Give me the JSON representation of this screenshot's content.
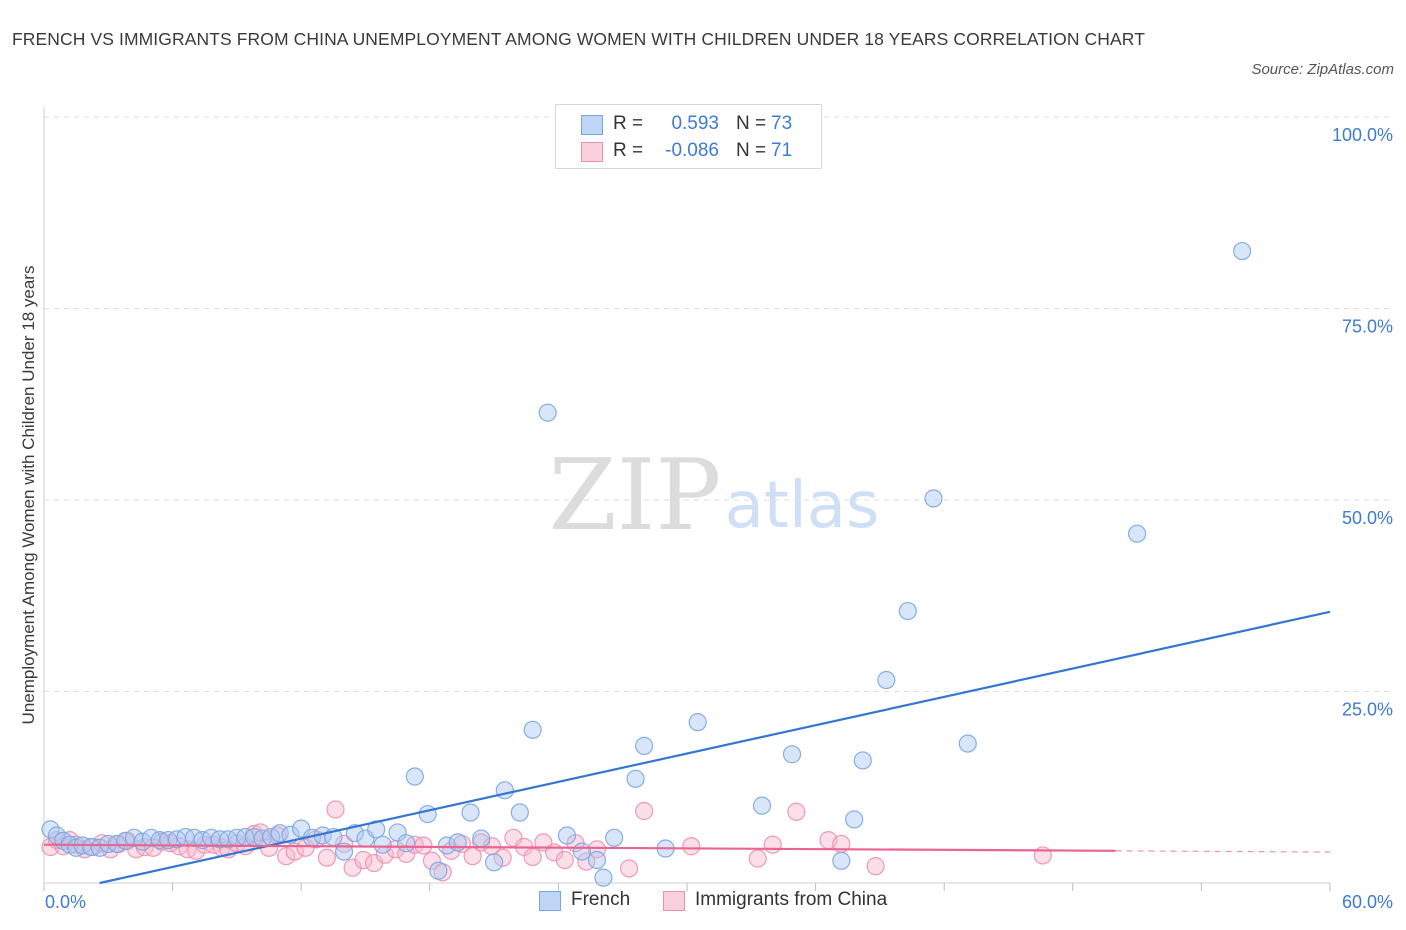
{
  "title": "FRENCH VS IMMIGRANTS FROM CHINA UNEMPLOYMENT AMONG WOMEN WITH CHILDREN UNDER 18 YEARS CORRELATION CHART",
  "source": "Source: ZipAtlas.com",
  "watermark": {
    "zip": "ZIP",
    "atlas": "atlas"
  },
  "legend": {
    "r_label": "R =",
    "n_label": "N =",
    "rows": [
      {
        "r": "0.593",
        "n": "73"
      },
      {
        "r": "-0.086",
        "n": "71"
      }
    ]
  },
  "bottom_legend": [
    "French",
    "Immigrants from China"
  ],
  "colors": {
    "french_fill": "#aac8f2",
    "french_stroke": "#7aa6e0",
    "french_line": "#3576d3",
    "china_fill": "#f7b9cc",
    "china_stroke": "#ee8fb0",
    "china_line": "#e9648f",
    "tick_text": "#3e7bd4"
  },
  "chart_data": {
    "type": "scatter",
    "title": "FRENCH VS IMMIGRANTS FROM CHINA UNEMPLOYMENT AMONG WOMEN WITH CHILDREN UNDER 18 YEARS CORRELATION CHART",
    "xlabel": "",
    "ylabel": "Unemployment Among Women with Children Under 18 years",
    "xlim": [
      0,
      60
    ],
    "ylim": [
      0,
      100
    ],
    "x_tick_labels": [
      "0.0%",
      "60.0%"
    ],
    "y_tick_labels": [
      "100.0%",
      "75.0%",
      "50.0%",
      "25.0%"
    ],
    "y_ticks": [
      100,
      75,
      50,
      25
    ],
    "grid": true,
    "legend_position": "top-center",
    "series": [
      {
        "name": "French",
        "R": 0.593,
        "N": 73,
        "trend": {
          "x0": 2.6,
          "y0": 0.0,
          "x1": 60,
          "y1": 35.4,
          "style": "solid"
        },
        "points": [
          [
            0.3,
            7.0
          ],
          [
            0.6,
            6.2
          ],
          [
            0.9,
            5.5
          ],
          [
            1.2,
            5.0
          ],
          [
            1.5,
            4.6
          ],
          [
            1.8,
            4.9
          ],
          [
            2.2,
            4.7
          ],
          [
            2.6,
            4.6
          ],
          [
            3.0,
            5.1
          ],
          [
            3.4,
            5.1
          ],
          [
            3.8,
            5.5
          ],
          [
            4.2,
            5.9
          ],
          [
            4.6,
            5.4
          ],
          [
            5.0,
            5.9
          ],
          [
            5.4,
            5.6
          ],
          [
            5.8,
            5.6
          ],
          [
            6.2,
            5.7
          ],
          [
            6.6,
            6.0
          ],
          [
            7.0,
            5.9
          ],
          [
            7.4,
            5.6
          ],
          [
            7.8,
            5.9
          ],
          [
            8.2,
            5.7
          ],
          [
            8.6,
            5.7
          ],
          [
            9.0,
            5.9
          ],
          [
            9.4,
            6.0
          ],
          [
            9.8,
            6.0
          ],
          [
            10.2,
            5.8
          ],
          [
            10.6,
            6.0
          ],
          [
            11.0,
            6.5
          ],
          [
            11.5,
            6.3
          ],
          [
            12.0,
            7.1
          ],
          [
            12.5,
            5.9
          ],
          [
            13.0,
            6.2
          ],
          [
            13.5,
            6.0
          ],
          [
            14.0,
            4.1
          ],
          [
            14.5,
            6.5
          ],
          [
            15.0,
            5.8
          ],
          [
            15.5,
            7.0
          ],
          [
            15.8,
            5.0
          ],
          [
            16.5,
            6.6
          ],
          [
            16.9,
            5.2
          ],
          [
            17.3,
            13.9
          ],
          [
            17.9,
            9.0
          ],
          [
            18.4,
            1.6
          ],
          [
            18.8,
            4.9
          ],
          [
            19.3,
            5.3
          ],
          [
            19.9,
            9.2
          ],
          [
            20.4,
            5.8
          ],
          [
            21.0,
            2.7
          ],
          [
            21.5,
            12.1
          ],
          [
            22.2,
            9.2
          ],
          [
            22.8,
            20.0
          ],
          [
            23.5,
            61.4
          ],
          [
            24.4,
            6.2
          ],
          [
            25.1,
            4.1
          ],
          [
            25.8,
            3.0
          ],
          [
            26.1,
            0.7
          ],
          [
            26.6,
            5.9
          ],
          [
            27.6,
            13.6
          ],
          [
            28.0,
            17.9
          ],
          [
            29.0,
            4.5
          ],
          [
            30.5,
            21.0
          ],
          [
            33.5,
            10.1
          ],
          [
            34.9,
            16.8
          ],
          [
            37.2,
            2.9
          ],
          [
            37.8,
            8.3
          ],
          [
            38.2,
            16.0
          ],
          [
            39.3,
            26.5
          ],
          [
            40.3,
            35.5
          ],
          [
            41.5,
            50.2
          ],
          [
            43.1,
            18.2
          ],
          [
            51.0,
            45.6
          ],
          [
            55.9,
            82.5
          ]
        ]
      },
      {
        "name": "Immigrants from China",
        "R": -0.086,
        "N": 71,
        "trend": {
          "x0": 0,
          "y0": 5.0,
          "x1": 50,
          "y1": 4.2,
          "style": "solid",
          "dashed_to": 60
        },
        "points": [
          [
            0.3,
            4.7
          ],
          [
            0.6,
            5.6
          ],
          [
            0.9,
            4.8
          ],
          [
            1.2,
            5.6
          ],
          [
            1.5,
            5.0
          ],
          [
            1.9,
            4.4
          ],
          [
            2.3,
            4.7
          ],
          [
            2.7,
            5.2
          ],
          [
            3.1,
            4.4
          ],
          [
            3.5,
            5.1
          ],
          [
            3.9,
            5.5
          ],
          [
            4.3,
            4.4
          ],
          [
            4.7,
            4.7
          ],
          [
            5.1,
            4.6
          ],
          [
            5.5,
            5.4
          ],
          [
            5.9,
            5.2
          ],
          [
            6.3,
            4.8
          ],
          [
            6.7,
            4.4
          ],
          [
            7.1,
            4.2
          ],
          [
            7.5,
            5.0
          ],
          [
            7.9,
            5.0
          ],
          [
            8.3,
            4.6
          ],
          [
            8.6,
            4.4
          ],
          [
            9.0,
            5.2
          ],
          [
            9.4,
            4.8
          ],
          [
            9.8,
            6.4
          ],
          [
            10.1,
            6.6
          ],
          [
            10.5,
            4.6
          ],
          [
            10.9,
            6.2
          ],
          [
            11.3,
            3.5
          ],
          [
            11.7,
            4.1
          ],
          [
            12.2,
            4.6
          ],
          [
            12.7,
            5.7
          ],
          [
            13.2,
            3.3
          ],
          [
            13.6,
            9.6
          ],
          [
            14.0,
            5.1
          ],
          [
            14.4,
            2.0
          ],
          [
            14.9,
            3.0
          ],
          [
            15.4,
            2.6
          ],
          [
            15.9,
            3.7
          ],
          [
            16.4,
            4.4
          ],
          [
            16.9,
            3.8
          ],
          [
            17.3,
            5.0
          ],
          [
            17.7,
            4.9
          ],
          [
            18.1,
            2.9
          ],
          [
            18.6,
            1.4
          ],
          [
            19.0,
            4.2
          ],
          [
            19.5,
            5.1
          ],
          [
            20.0,
            3.5
          ],
          [
            20.4,
            5.3
          ],
          [
            20.9,
            4.8
          ],
          [
            21.4,
            3.3
          ],
          [
            21.9,
            5.9
          ],
          [
            22.4,
            4.7
          ],
          [
            22.8,
            3.4
          ],
          [
            23.3,
            5.3
          ],
          [
            23.8,
            4.0
          ],
          [
            24.3,
            3.0
          ],
          [
            24.8,
            5.2
          ],
          [
            25.3,
            2.8
          ],
          [
            25.8,
            4.4
          ],
          [
            27.3,
            1.9
          ],
          [
            28.0,
            9.4
          ],
          [
            30.2,
            4.8
          ],
          [
            33.3,
            3.2
          ],
          [
            34.0,
            5.0
          ],
          [
            35.1,
            9.3
          ],
          [
            36.6,
            5.6
          ],
          [
            37.2,
            5.1
          ],
          [
            38.8,
            2.2
          ],
          [
            46.6,
            3.6
          ]
        ]
      }
    ]
  }
}
